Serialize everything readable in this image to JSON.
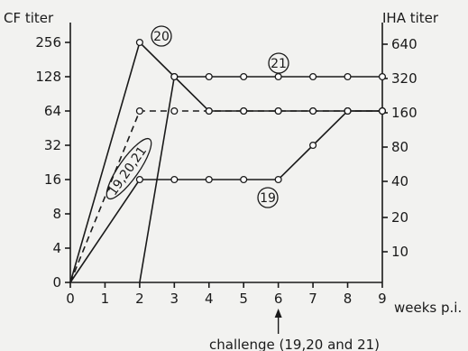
{
  "chart_data": {
    "type": "line",
    "left_axis_title": "CF titer",
    "right_axis_title": "IHA titer",
    "x_axis_label": "weeks p.i.",
    "x_ticks": [
      "0",
      "1",
      "2",
      "3",
      "4",
      "5",
      "6",
      "7",
      "8",
      "9"
    ],
    "left_ticks": [
      "0",
      "4",
      "8",
      "16",
      "32",
      "64",
      "128",
      "256"
    ],
    "right_ticks": [
      "10",
      "20",
      "40",
      "80",
      "160",
      "320",
      "640"
    ],
    "annotation": "challenge (19,20 and 21)",
    "annotation_x": 6,
    "grid": false,
    "series": [
      {
        "name": "20",
        "style": "solid",
        "marker": "circle",
        "points": [
          [
            0,
            0
          ],
          [
            2,
            256
          ],
          [
            3,
            128
          ],
          [
            4,
            64
          ],
          [
            5,
            64
          ],
          [
            6,
            64
          ],
          [
            7,
            64
          ],
          [
            8,
            64
          ],
          [
            9,
            64
          ]
        ]
      },
      {
        "name": "21",
        "style": "solid",
        "marker": "circle",
        "points": [
          [
            2,
            0
          ],
          [
            3,
            128
          ],
          [
            4,
            128
          ],
          [
            5,
            128
          ],
          [
            6,
            128
          ],
          [
            7,
            128
          ],
          [
            8,
            128
          ],
          [
            9,
            128
          ]
        ]
      },
      {
        "name": "19",
        "style": "solid",
        "marker": "circle",
        "points": [
          [
            0,
            0
          ],
          [
            2,
            16
          ],
          [
            3,
            16
          ],
          [
            4,
            16
          ],
          [
            5,
            16
          ],
          [
            6,
            16
          ],
          [
            7,
            32
          ],
          [
            8,
            64
          ],
          [
            9,
            64
          ]
        ]
      },
      {
        "name": "19,20,21",
        "style": "dashed",
        "marker": "circle",
        "points": [
          [
            0,
            0
          ],
          [
            2,
            64
          ],
          [
            3,
            64
          ],
          [
            4,
            64
          ],
          [
            5,
            64
          ],
          [
            6,
            64
          ],
          [
            7,
            64
          ],
          [
            8,
            64
          ],
          [
            9,
            64
          ]
        ]
      }
    ],
    "series_tags": [
      "20",
      "21",
      "19",
      "19,20,21"
    ],
    "colors": {
      "ink": "#1a1a1a",
      "background": "#f2f2f0"
    }
  }
}
